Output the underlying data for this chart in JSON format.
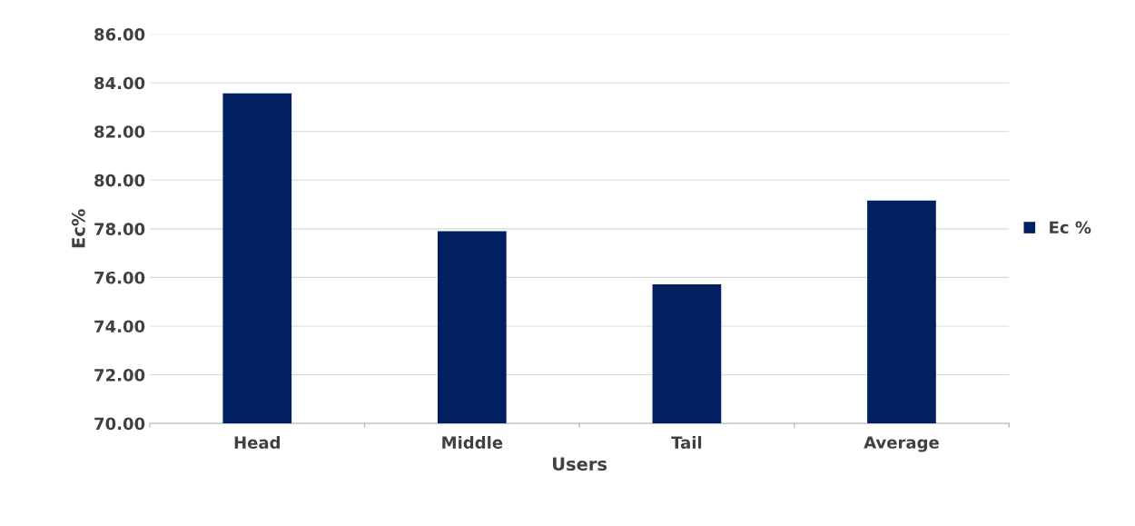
{
  "chart_data": {
    "type": "bar",
    "xlabel": "Users",
    "ylabel": "Ec%",
    "categories": [
      "Head",
      "Middle",
      "Tail",
      "Average"
    ],
    "series": [
      {
        "name": "Ec %",
        "color": "#002060",
        "values": [
          83.57,
          77.9,
          75.72,
          79.16
        ]
      }
    ],
    "ylim": [
      70,
      86
    ],
    "yticks": [
      {
        "value": 70,
        "label": "70.00"
      },
      {
        "value": 72,
        "label": "72.00"
      },
      {
        "value": 74,
        "label": "74.00"
      },
      {
        "value": 76,
        "label": "76.00"
      },
      {
        "value": 78,
        "label": "78.00"
      },
      {
        "value": 80,
        "label": "80.00"
      },
      {
        "value": 82,
        "label": "82.00"
      },
      {
        "value": 84,
        "label": "84.00"
      },
      {
        "value": 86,
        "label": "86.00"
      }
    ],
    "grid": "y",
    "legend": "right"
  }
}
